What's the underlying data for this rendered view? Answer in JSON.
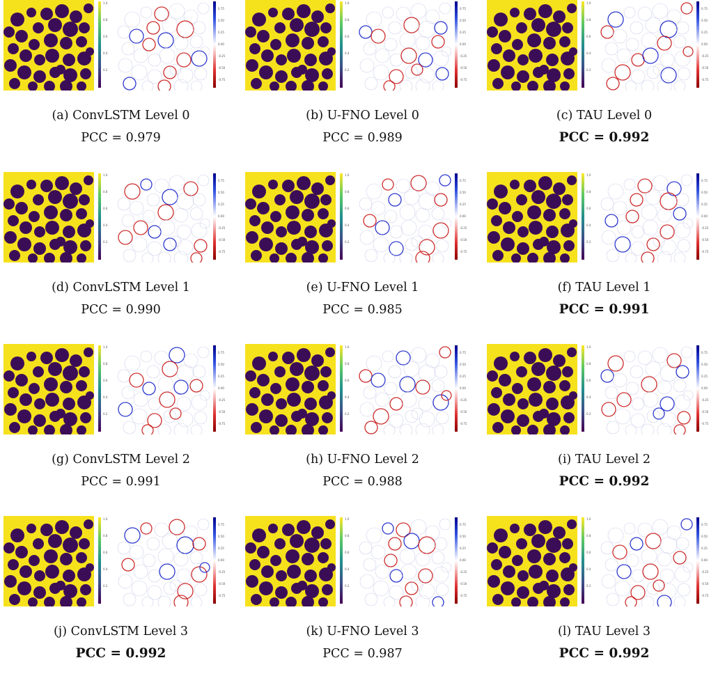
{
  "figure": {
    "panels": [
      {
        "caption": "(a) ConvLSTM Level 0",
        "pcc": "PCC = 0.979",
        "best": false
      },
      {
        "caption": "(b) U-FNO Level 0",
        "pcc": "PCC = 0.989",
        "best": false
      },
      {
        "caption": "(c) TAU Level 0",
        "pcc": "PCC = 0.992",
        "best": true
      },
      {
        "caption": "(d) ConvLSTM Level 1",
        "pcc": "PCC = 0.990",
        "best": false
      },
      {
        "caption": "(e) U-FNO Level 1",
        "pcc": "PCC = 0.985",
        "best": false
      },
      {
        "caption": "(f) TAU Level 1",
        "pcc": "PCC = 0.991",
        "best": true
      },
      {
        "caption": "(g) ConvLSTM Level 2",
        "pcc": "PCC = 0.991",
        "best": false
      },
      {
        "caption": "(h) U-FNO Level 2",
        "pcc": "PCC = 0.988",
        "best": false
      },
      {
        "caption": "(i) TAU Level 2",
        "pcc": "PCC = 0.992",
        "best": true
      },
      {
        "caption": "(j) ConvLSTM Level 3",
        "pcc": "PCC = 0.992",
        "best": true
      },
      {
        "caption": "(k) U-FNO Level 3",
        "pcc": "PCC = 0.987",
        "best": false
      },
      {
        "caption": "(l) TAU Level 3",
        "pcc": "PCC = 0.992",
        "best": true
      }
    ],
    "viridis_ticks": [
      "1.0",
      "0.8",
      "0.6",
      "0.4",
      "0.2"
    ],
    "diverging_ticks": [
      "0.75",
      "0.50",
      "0.25",
      "0.00",
      "-0.25",
      "-0.50",
      "-0.75"
    ],
    "colors": {
      "field_yellow": "#f6e11d",
      "pore_purple": "#3c0d57",
      "diverging_blue": "#1522c8",
      "diverging_red": "#c81515"
    }
  }
}
